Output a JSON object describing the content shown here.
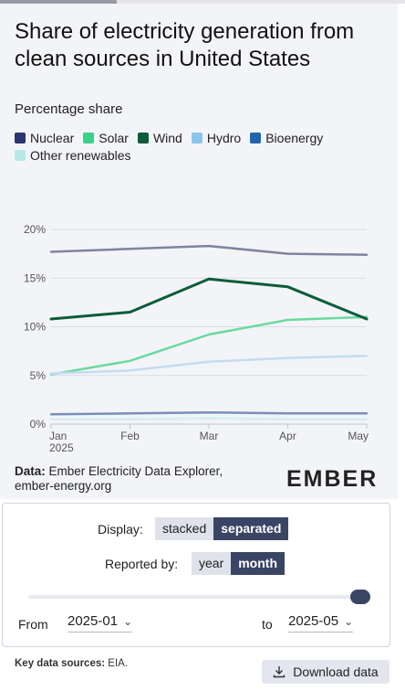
{
  "header": {
    "title": "Share of electricity generation from clean sources in United States",
    "subtitle": "Percentage share"
  },
  "legend": [
    {
      "label": "Nuclear",
      "color": "#2b3672"
    },
    {
      "label": "Solar",
      "color": "#3bd18a"
    },
    {
      "label": "Wind",
      "color": "#0d5c3a"
    },
    {
      "label": "Hydro",
      "color": "#8cc4ea"
    },
    {
      "label": "Bioenergy",
      "color": "#2165a8"
    },
    {
      "label": "Other renewables",
      "color": "#b8e8e8"
    }
  ],
  "chart_data": {
    "type": "line",
    "title": "Share of electricity generation from clean sources in United States",
    "ylabel": "Percentage share",
    "x": [
      "Jan 2025",
      "Feb",
      "Mar",
      "Apr",
      "May"
    ],
    "x_tick_labels": [
      "Jan",
      "Feb",
      "Mar",
      "Apr",
      "May"
    ],
    "x_tick_sublabel": "2025",
    "y_ticks": [
      "0%",
      "5%",
      "10%",
      "15%",
      "20%"
    ],
    "ylim": [
      0,
      20
    ],
    "grid": true,
    "series": [
      {
        "name": "Nuclear",
        "color": "#7c849f",
        "values": [
          17.7,
          18.0,
          18.3,
          17.5,
          17.4
        ]
      },
      {
        "name": "Solar",
        "color": "#6ad9a0",
        "values": [
          5.1,
          6.5,
          9.2,
          10.7,
          11.0
        ]
      },
      {
        "name": "Wind",
        "color": "#0d5c3a",
        "values": [
          10.8,
          11.5,
          14.9,
          14.1,
          10.8
        ]
      },
      {
        "name": "Hydro",
        "color": "#c4dcf0",
        "values": [
          5.2,
          5.5,
          6.4,
          6.8,
          7.0
        ]
      },
      {
        "name": "Bioenergy",
        "color": "#7a8fb8",
        "values": [
          1.0,
          1.1,
          1.2,
          1.1,
          1.1
        ]
      },
      {
        "name": "Other renewables",
        "color": "#d4eeee",
        "values": [
          0.5,
          0.5,
          0.6,
          0.5,
          0.5
        ]
      }
    ]
  },
  "source": {
    "label": "Data:",
    "text": "Ember Electricity Data Explorer,",
    "url": "ember-energy.org",
    "logo": "EMBER"
  },
  "controls": {
    "display_label": "Display:",
    "display_options": [
      "stacked",
      "separated"
    ],
    "display_selected": "separated",
    "reported_label": "Reported by:",
    "reported_options": [
      "year",
      "month"
    ],
    "reported_selected": "month",
    "from_label": "From",
    "from_value": "2025-01",
    "to_label": "to",
    "to_value": "2025-05"
  },
  "footer": {
    "key_label": "Key data sources:",
    "key_value": "EIA.",
    "download_label": "Download data"
  }
}
